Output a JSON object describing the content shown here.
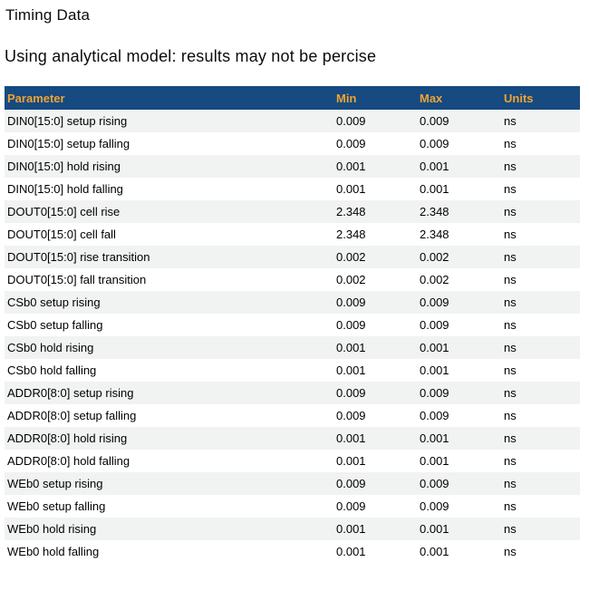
{
  "page": {
    "title": "Timing Data",
    "subtitle": "Using analytical model: results may not be percise"
  },
  "colors": {
    "header_bg": "#164a80",
    "header_text": "#f0a330",
    "stripe": "#f1f2f2",
    "text": "#000000"
  },
  "table": {
    "columns": [
      "Parameter",
      "Min",
      "Max",
      "Units"
    ],
    "rows": [
      [
        "DIN0[15:0] setup rising",
        "0.009",
        "0.009",
        "ns"
      ],
      [
        "DIN0[15:0] setup falling",
        "0.009",
        "0.009",
        "ns"
      ],
      [
        "DIN0[15:0] hold rising",
        "0.001",
        "0.001",
        "ns"
      ],
      [
        "DIN0[15:0] hold falling",
        "0.001",
        "0.001",
        "ns"
      ],
      [
        "DOUT0[15:0] cell rise",
        "2.348",
        "2.348",
        "ns"
      ],
      [
        "DOUT0[15:0] cell fall",
        "2.348",
        "2.348",
        "ns"
      ],
      [
        "DOUT0[15:0] rise transition",
        "0.002",
        "0.002",
        "ns"
      ],
      [
        "DOUT0[15:0] fall transition",
        "0.002",
        "0.002",
        "ns"
      ],
      [
        "CSb0 setup rising",
        "0.009",
        "0.009",
        "ns"
      ],
      [
        "CSb0 setup falling",
        "0.009",
        "0.009",
        "ns"
      ],
      [
        "CSb0 hold rising",
        "0.001",
        "0.001",
        "ns"
      ],
      [
        "CSb0 hold falling",
        "0.001",
        "0.001",
        "ns"
      ],
      [
        "ADDR0[8:0] setup rising",
        "0.009",
        "0.009",
        "ns"
      ],
      [
        "ADDR0[8:0] setup falling",
        "0.009",
        "0.009",
        "ns"
      ],
      [
        "ADDR0[8:0] hold rising",
        "0.001",
        "0.001",
        "ns"
      ],
      [
        "ADDR0[8:0] hold falling",
        "0.001",
        "0.001",
        "ns"
      ],
      [
        "WEb0 setup rising",
        "0.009",
        "0.009",
        "ns"
      ],
      [
        "WEb0 setup falling",
        "0.009",
        "0.009",
        "ns"
      ],
      [
        "WEb0 hold rising",
        "0.001",
        "0.001",
        "ns"
      ],
      [
        "WEb0 hold falling",
        "0.001",
        "0.001",
        "ns"
      ]
    ]
  }
}
